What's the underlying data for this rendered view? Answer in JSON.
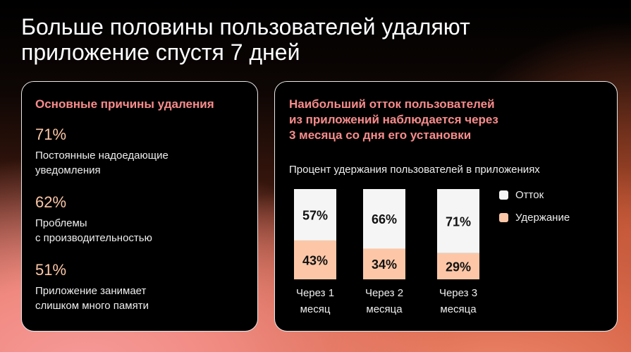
{
  "title": "Больше половины пользователей удаляют приложение спустя 7 дней",
  "reasons": {
    "heading": "Основные причины удаления",
    "items": [
      {
        "percent": "71%",
        "line1": "Постоянные надоедающие",
        "line2": "уведомления"
      },
      {
        "percent": "62%",
        "line1": "Проблемы",
        "line2": "с производительностью"
      },
      {
        "percent": "51%",
        "line1": "Приложение занимает",
        "line2": "слишком много памяти"
      }
    ]
  },
  "churn": {
    "heading_lines": [
      "Наибольший отток пользователей",
      "из приложений наблюдается через",
      "3 месяца со дня его установки"
    ]
  },
  "chart_data": {
    "type": "bar",
    "stacked": true,
    "title": "Процент удержания пользователей в приложениях",
    "categories": [
      [
        "Через 1",
        "месяц"
      ],
      [
        "Через 2",
        "месяца"
      ],
      [
        "Через 3",
        "месяца"
      ]
    ],
    "series": [
      {
        "name": "Удержание",
        "values": [
          43,
          34,
          29
        ],
        "color": "#fdc7a7"
      },
      {
        "name": "Отток",
        "values": [
          57,
          66,
          71
        ],
        "color": "#f5f5f5"
      }
    ],
    "ylim": [
      0,
      100
    ],
    "legend": "right",
    "grid": false
  }
}
